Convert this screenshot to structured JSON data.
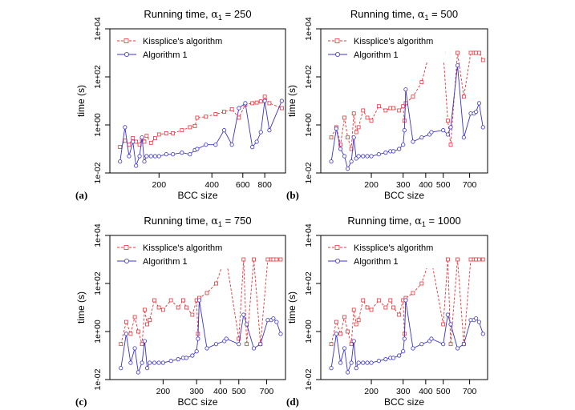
{
  "colors": {
    "kissplice": "#e8333a",
    "algorithm1": "#3b33c8"
  },
  "chart_data": [
    {
      "type": "line",
      "title": "Running time, α₁ = 250",
      "title_prefix": "Running time, ",
      "title_alpha": "α",
      "title_sub": "1",
      "title_suffix": " = 250",
      "xlabel": "BCC size",
      "ylabel": "time (s)",
      "panel_label": "(a)",
      "x_scale": "log",
      "y_scale": "log",
      "xlim": [
        105,
        1050
      ],
      "ylim": [
        0.01,
        10000
      ],
      "xticks": [
        200,
        400,
        600,
        800
      ],
      "xtick_labels": [
        "200",
        "400",
        "600",
        "800"
      ],
      "yticks": [
        0.01,
        1,
        100,
        10000
      ],
      "ytick_labels": [
        "1e-02",
        "1e+00",
        "1e+02",
        "1e+04"
      ],
      "legend_position": "top-left",
      "series": [
        {
          "name": "Kissplice's algorithm",
          "color_key": "kissplice",
          "line_style": "dashed",
          "marker": "square",
          "x": [
            120,
            128,
            135,
            142,
            148,
            155,
            160,
            165,
            170,
            180,
            190,
            200,
            220,
            240,
            270,
            300,
            320,
            330,
            370,
            420,
            470,
            520,
            570,
            620,
            680,
            720,
            760,
            800,
            850,
            1000
          ],
          "y": [
            0.12,
            0.22,
            0.15,
            0.28,
            0.2,
            0.15,
            0.25,
            0.2,
            0.35,
            0.18,
            0.28,
            0.4,
            0.45,
            0.45,
            0.6,
            0.8,
            0.9,
            2.0,
            2.2,
            2.8,
            3.5,
            4.5,
            2.0,
            7.0,
            8.0,
            8.5,
            9.5,
            15.0,
            8.0,
            5.0
          ]
        },
        {
          "name": "Algorithm 1",
          "color_key": "algorithm1",
          "line_style": "solid",
          "marker": "circle",
          "x": [
            120,
            128,
            135,
            142,
            148,
            155,
            160,
            165,
            170,
            180,
            190,
            200,
            220,
            240,
            270,
            300,
            320,
            330,
            370,
            420,
            470,
            520,
            570,
            620,
            680,
            720,
            760,
            800,
            850,
            1000
          ],
          "y": [
            0.03,
            0.8,
            0.05,
            0.2,
            0.02,
            0.05,
            0.3,
            0.03,
            0.05,
            0.05,
            0.05,
            0.05,
            0.06,
            0.06,
            0.07,
            0.06,
            0.09,
            0.1,
            0.15,
            0.15,
            0.6,
            0.15,
            5.0,
            8.0,
            0.12,
            0.2,
            0.5,
            10.0,
            0.6,
            10.0
          ]
        }
      ]
    },
    {
      "type": "line",
      "title": "Running time, α₁ = 500",
      "title_prefix": "Running time, ",
      "title_alpha": "α",
      "title_sub": "1",
      "title_suffix": " = 500",
      "xlabel": "BCC size",
      "ylabel": "time (s)",
      "panel_label": "(b)",
      "x_scale": "log",
      "y_scale": "log",
      "xlim": [
        105,
        880
      ],
      "ylim": [
        0.01,
        10000
      ],
      "xticks": [
        200,
        300,
        400,
        500,
        700
      ],
      "xtick_labels": [
        "200",
        "300",
        "400",
        "500",
        "700"
      ],
      "yticks": [
        0.01,
        1,
        100,
        10000
      ],
      "ytick_labels": [
        "1e-02",
        "1e+00",
        "1e+02",
        "1e+04"
      ],
      "legend_position": "top-left",
      "series": [
        {
          "name": "Kissplice's algorithm",
          "color_key": "kissplice",
          "line_style": "dashed",
          "marker": "square",
          "x": [
            120,
            128,
            135,
            142,
            148,
            155,
            160,
            165,
            170,
            180,
            190,
            200,
            220,
            240,
            255,
            265,
            285,
            300,
            305,
            310,
            340,
            380,
            420,
            430,
            500,
            530,
            550,
            600,
            650,
            710,
            740,
            760,
            790,
            830
          ],
          "y": [
            0.3,
            0.8,
            0.15,
            2.0,
            0.3,
            0.1,
            3.0,
            0.5,
            0.8,
            4.0,
            2.0,
            1.5,
            6.0,
            4.0,
            5.0,
            5.0,
            4.0,
            6.0,
            1.5,
            8.0,
            15.0,
            60.0,
            1000.0,
            1000.0,
            1000.0,
            1.5,
            0.15,
            1000.0,
            15.0,
            1000.0,
            1000.0,
            1000.0,
            1000.0,
            500.0
          ]
        },
        {
          "name": "Algorithm 1",
          "color_key": "algorithm1",
          "line_style": "solid",
          "marker": "circle",
          "x": [
            120,
            128,
            135,
            142,
            148,
            155,
            160,
            165,
            170,
            180,
            190,
            200,
            220,
            240,
            255,
            265,
            285,
            300,
            305,
            310,
            340,
            380,
            420,
            430,
            500,
            530,
            550,
            600,
            650,
            710,
            740,
            760,
            790,
            830
          ],
          "y": [
            0.03,
            0.7,
            0.1,
            0.05,
            0.015,
            0.03,
            0.3,
            0.04,
            0.05,
            0.05,
            0.05,
            0.05,
            0.06,
            0.07,
            0.08,
            0.08,
            0.1,
            0.15,
            0.6,
            30.0,
            0.2,
            0.3,
            0.4,
            0.5,
            0.6,
            0.4,
            0.8,
            300.0,
            0.3,
            3.0,
            3.0,
            3.5,
            8.0,
            0.8
          ]
        }
      ]
    },
    {
      "type": "line",
      "title": "Running time, α₁ = 750",
      "title_prefix": "Running time, ",
      "title_alpha": "α",
      "title_sub": "1",
      "title_suffix": " = 750",
      "xlabel": "BCC size",
      "ylabel": "time (s)",
      "panel_label": "(c)",
      "x_scale": "log",
      "y_scale": "log",
      "xlim": [
        105,
        880
      ],
      "ylim": [
        0.01,
        10000
      ],
      "xticks": [
        200,
        300,
        400,
        500,
        700
      ],
      "xtick_labels": [
        "200",
        "300",
        "400",
        "500",
        "700"
      ],
      "yticks": [
        0.01,
        1,
        100,
        10000
      ],
      "ytick_labels": [
        "1e-02",
        "1e+00",
        "1e+02",
        "1e+04"
      ],
      "legend_position": "top-left",
      "series": [
        {
          "name": "Kissplice's algorithm",
          "color_key": "kissplice",
          "line_style": "dashed",
          "marker": "square",
          "x": [
            120,
            128,
            135,
            142,
            148,
            155,
            160,
            165,
            170,
            180,
            190,
            200,
            220,
            240,
            255,
            265,
            285,
            300,
            305,
            310,
            340,
            380,
            420,
            430,
            500,
            530,
            550,
            600,
            650,
            710,
            740,
            760,
            790,
            830
          ],
          "y": [
            0.3,
            2.5,
            0.8,
            4.0,
            1.0,
            0.3,
            8.0,
            2.0,
            3.0,
            20.0,
            10.0,
            8.0,
            20.0,
            10.0,
            20.0,
            10.0,
            5.0,
            20.0,
            0.8,
            25.0,
            40.0,
            100.0,
            1000.0,
            1000.0,
            0.5,
            1000.0,
            0.3,
            1000.0,
            0.3,
            1000.0,
            1000.0,
            1000.0,
            1000.0,
            1000.0
          ]
        },
        {
          "name": "Algorithm 1",
          "color_key": "algorithm1",
          "line_style": "solid",
          "marker": "circle",
          "x": [
            120,
            128,
            135,
            142,
            148,
            155,
            160,
            165,
            170,
            180,
            190,
            200,
            220,
            240,
            255,
            265,
            285,
            300,
            305,
            310,
            340,
            380,
            420,
            430,
            500,
            530,
            550,
            600,
            650,
            710,
            740,
            760,
            790,
            830
          ],
          "y": [
            0.03,
            0.8,
            0.05,
            0.2,
            0.02,
            0.05,
            0.4,
            0.03,
            0.05,
            0.05,
            0.05,
            0.05,
            0.06,
            0.07,
            0.08,
            0.08,
            0.1,
            0.15,
            0.5,
            20.0,
            0.2,
            0.3,
            0.4,
            0.5,
            0.3,
            5.0,
            2.0,
            0.2,
            0.3,
            3.0,
            3.0,
            3.5,
            2.5,
            0.8
          ]
        }
      ]
    },
    {
      "type": "line",
      "title": "Running time, α₁ = 1000",
      "title_prefix": "Running time, ",
      "title_alpha": "α",
      "title_sub": "1",
      "title_suffix": " = 1000",
      "xlabel": "BCC size",
      "ylabel": "time (s)",
      "panel_label": "(d)",
      "x_scale": "log",
      "y_scale": "log",
      "xlim": [
        105,
        880
      ],
      "ylim": [
        0.01,
        10000
      ],
      "xticks": [
        200,
        300,
        400,
        500,
        700
      ],
      "xtick_labels": [
        "200",
        "300",
        "400",
        "500",
        "700"
      ],
      "yticks": [
        0.01,
        1,
        100,
        10000
      ],
      "ytick_labels": [
        "1e-02",
        "1e+00",
        "1e+02",
        "1e+04"
      ],
      "legend_position": "top-left",
      "series": [
        {
          "name": "Kissplice's algorithm",
          "color_key": "kissplice",
          "line_style": "dashed",
          "marker": "square",
          "x": [
            120,
            128,
            135,
            142,
            148,
            155,
            160,
            165,
            170,
            180,
            190,
            200,
            220,
            240,
            255,
            265,
            285,
            300,
            305,
            310,
            340,
            380,
            420,
            430,
            500,
            530,
            550,
            600,
            650,
            710,
            740,
            760,
            790,
            830
          ],
          "y": [
            0.3,
            2.5,
            0.8,
            4.0,
            1.0,
            0.3,
            8.0,
            2.0,
            3.0,
            20.0,
            10.0,
            8.0,
            20.0,
            10.0,
            20.0,
            10.0,
            5.0,
            20.0,
            0.8,
            25.0,
            40.0,
            100.0,
            1000.0,
            1000.0,
            2.0,
            1000.0,
            0.3,
            1000.0,
            0.3,
            1000.0,
            1000.0,
            1000.0,
            1000.0,
            1000.0
          ]
        },
        {
          "name": "Algorithm 1",
          "color_key": "algorithm1",
          "line_style": "solid",
          "marker": "circle",
          "x": [
            120,
            128,
            135,
            142,
            148,
            155,
            160,
            165,
            170,
            180,
            190,
            200,
            220,
            240,
            255,
            265,
            285,
            300,
            305,
            310,
            340,
            380,
            420,
            430,
            500,
            530,
            550,
            600,
            650,
            710,
            740,
            760,
            790,
            830
          ],
          "y": [
            0.03,
            0.8,
            0.05,
            0.2,
            0.02,
            0.05,
            0.4,
            0.03,
            0.05,
            0.05,
            0.05,
            0.05,
            0.06,
            0.07,
            0.08,
            0.08,
            0.1,
            0.15,
            0.5,
            20.0,
            0.2,
            0.3,
            0.4,
            0.5,
            0.3,
            5.0,
            2.0,
            0.2,
            0.3,
            3.0,
            3.0,
            3.5,
            2.5,
            0.8
          ]
        }
      ]
    }
  ]
}
